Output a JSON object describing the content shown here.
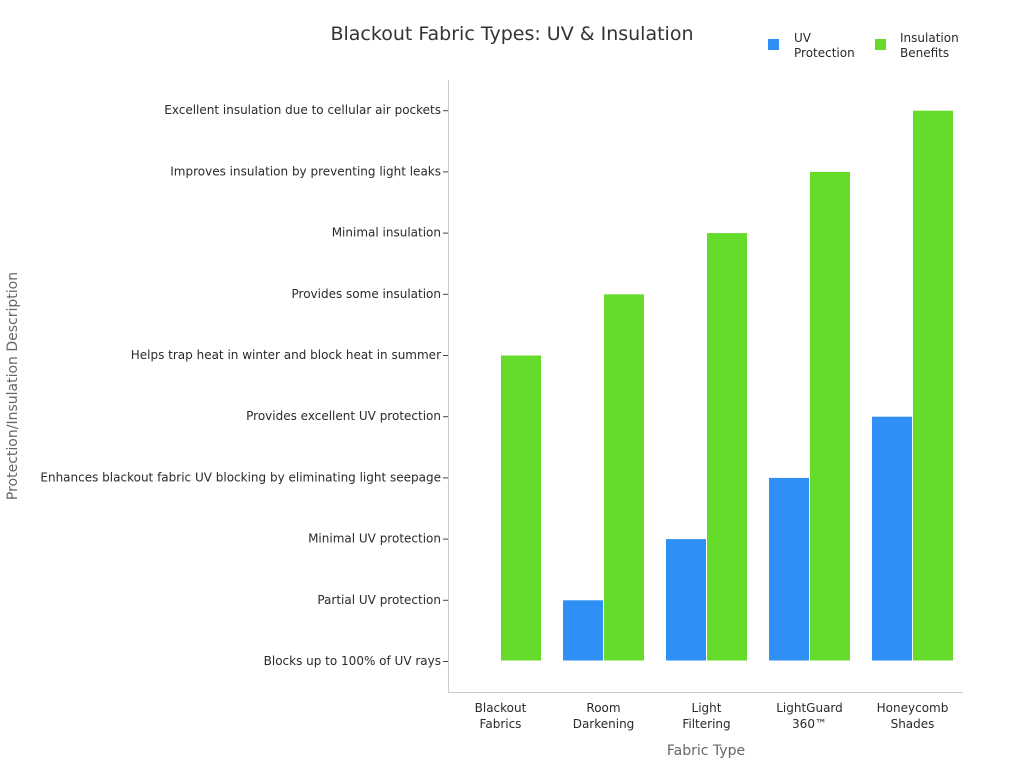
{
  "chart_data": {
    "type": "bar",
    "title": "Blackout Fabric Types: UV & Insulation",
    "xlabel": "Fabric Type",
    "ylabel": "Protection/Insulation Description",
    "categories": [
      [
        "Blackout",
        "Fabrics"
      ],
      [
        "Room",
        "Darkening"
      ],
      [
        "Light",
        "Filtering"
      ],
      [
        "LightGuard",
        "360™"
      ],
      [
        "Honeycomb",
        "Shades"
      ]
    ],
    "y_categories": [
      "Blocks up to 100% of UV rays",
      "Partial UV protection",
      "Minimal UV protection",
      "Enhances blackout fabric UV blocking by eliminating light seepage",
      "Provides excellent UV protection",
      "Helps trap heat in winter and block heat in summer",
      "Provides some insulation",
      "Minimal insulation",
      "Improves insulation by preventing light leaks",
      "Excellent insulation due to cellular air pockets"
    ],
    "series": [
      {
        "name": [
          "UV",
          "Protection"
        ],
        "color": "#2e90f5",
        "values": [
          0,
          1,
          2,
          3,
          4
        ]
      },
      {
        "name": [
          "Insulation",
          "Benefits"
        ],
        "color": "#66dc2a",
        "values": [
          5,
          6,
          7,
          8,
          9
        ]
      }
    ],
    "ylim": [
      -0.5,
      9.5
    ],
    "legend_position": "top-right",
    "grid": false
  }
}
